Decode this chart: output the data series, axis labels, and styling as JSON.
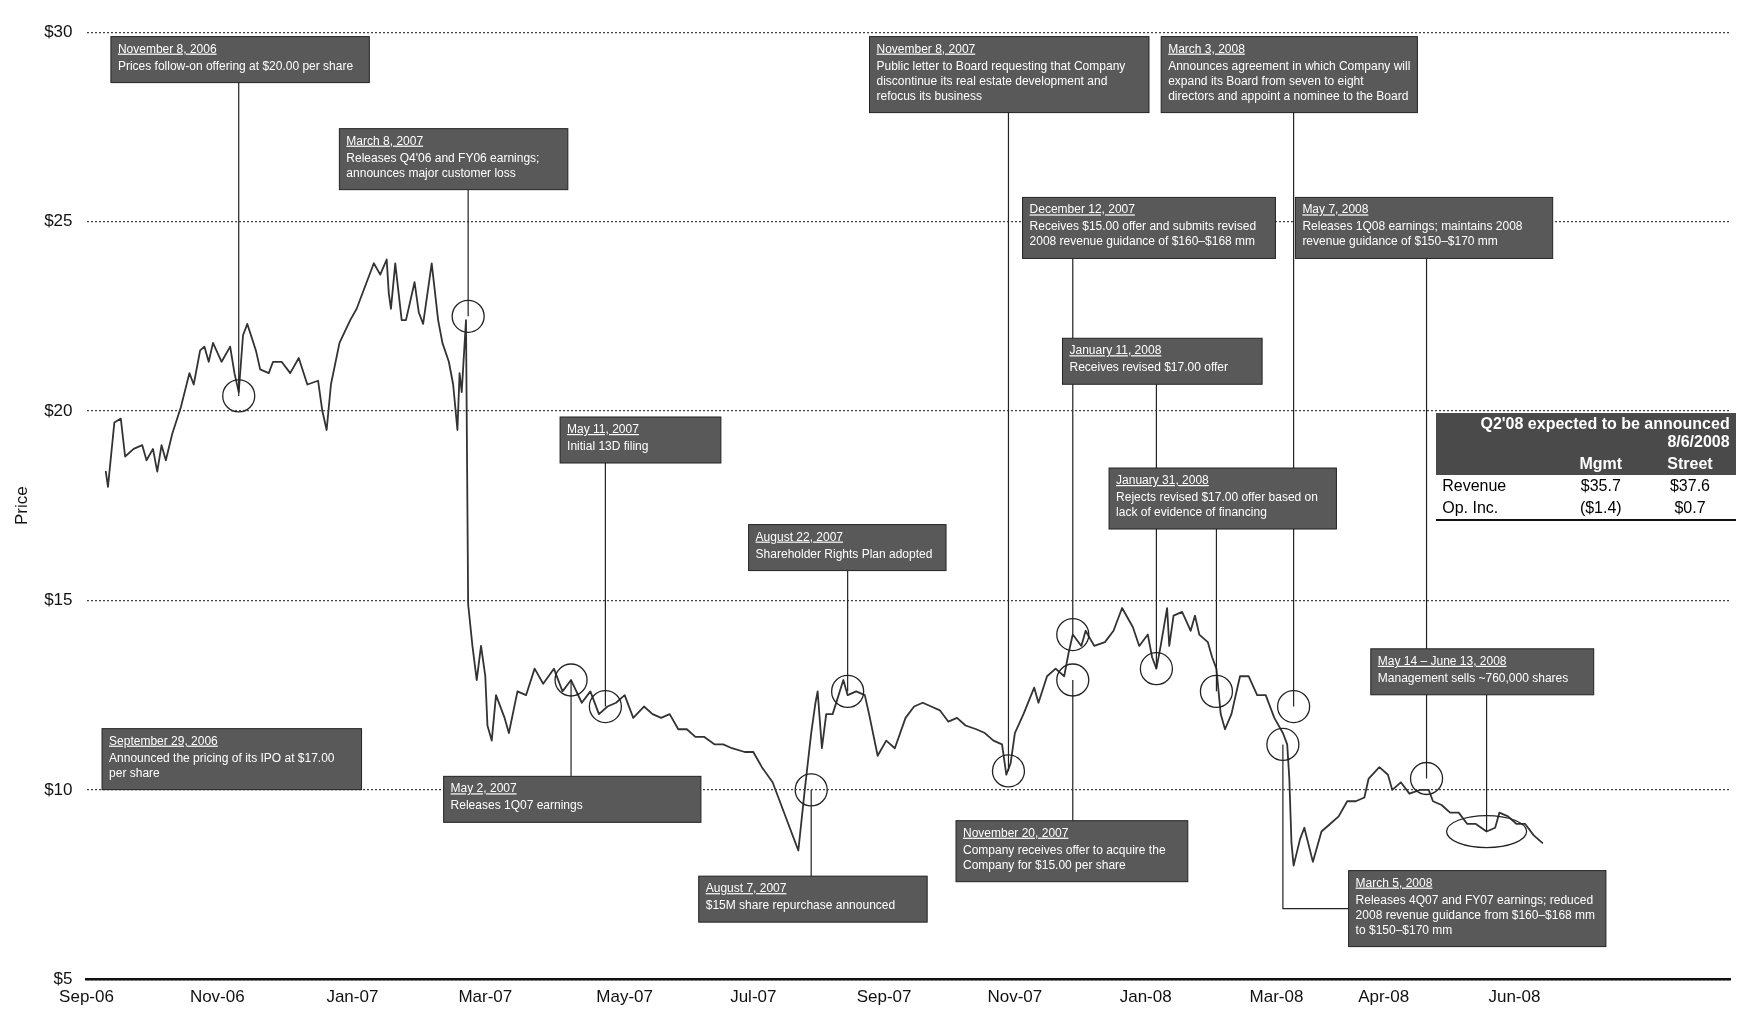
{
  "chart_data": {
    "type": "line",
    "ylabel": "Price",
    "color": "#333333",
    "marker": "none",
    "line_style": "solid",
    "grid": "y",
    "legend": false,
    "xlim": [
      "2006-09-01",
      "2008-10-07"
    ],
    "xticks": [
      {
        "value": "2006-09-01",
        "label": "Sep-06"
      },
      {
        "value": "2006-11-01",
        "label": "Nov-06"
      },
      {
        "value": "2007-01-03",
        "label": "Jan-07"
      },
      {
        "value": "2007-03-06",
        "label": "Mar-07"
      },
      {
        "value": "2007-05-10",
        "label": "May-07"
      },
      {
        "value": "2007-07-09",
        "label": "Jul-07"
      },
      {
        "value": "2007-09-08",
        "label": "Sep-07"
      },
      {
        "value": "2007-11-08",
        "label": "Nov-07"
      },
      {
        "value": "2008-01-08",
        "label": "Jan-08"
      },
      {
        "value": "2008-03-09",
        "label": "Mar-08"
      },
      {
        "value": "2008-04-28",
        "label": "Apr-08"
      },
      {
        "value": "2008-06-28",
        "label": "Jun-08"
      }
    ],
    "ylim": [
      5,
      30
    ],
    "yticks": [
      {
        "value": 5,
        "label": "$5"
      },
      {
        "value": 10,
        "label": "$10"
      },
      {
        "value": 15,
        "label": "$15"
      },
      {
        "value": 20,
        "label": "$20"
      },
      {
        "value": 25,
        "label": "$25"
      },
      {
        "value": 30,
        "label": "$30"
      }
    ],
    "x": [
      "2006-09-10",
      "2006-09-11",
      "2006-09-14",
      "2006-09-17",
      "2006-09-19",
      "2006-09-23",
      "2006-09-27",
      "2006-09-29",
      "2006-10-02",
      "2006-10-04",
      "2006-10-06",
      "2006-10-08",
      "2006-10-11",
      "2006-10-15",
      "2006-10-19",
      "2006-10-21",
      "2006-10-24",
      "2006-10-26",
      "2006-10-28",
      "2006-10-30",
      "2006-11-03",
      "2006-11-07",
      "2006-11-09",
      "2006-11-11",
      "2006-11-13",
      "2006-11-15",
      "2006-11-19",
      "2006-11-21",
      "2006-11-25",
      "2006-11-27",
      "2006-12-01",
      "2006-12-05",
      "2006-12-09",
      "2006-12-13",
      "2006-12-18",
      "2006-12-20",
      "2006-12-22",
      "2006-12-24",
      "2006-12-28",
      "2007-01-02",
      "2007-01-05",
      "2007-01-09",
      "2007-01-13",
      "2007-01-16",
      "2007-01-19",
      "2007-01-20",
      "2007-01-21",
      "2007-01-23",
      "2007-01-26",
      "2007-01-28",
      "2007-02-01",
      "2007-02-03",
      "2007-02-05",
      "2007-02-09",
      "2007-02-12",
      "2007-02-14",
      "2007-02-17",
      "2007-02-19",
      "2007-02-21",
      "2007-02-22",
      "2007-02-23",
      "2007-02-25",
      "2007-02-26",
      "2007-02-28",
      "2007-03-02",
      "2007-03-04",
      "2007-03-06",
      "2007-03-07",
      "2007-03-09",
      "2007-03-11",
      "2007-03-15",
      "2007-03-17",
      "2007-03-21",
      "2007-03-25",
      "2007-03-29",
      "2007-04-02",
      "2007-04-07",
      "2007-04-11",
      "2007-04-15",
      "2007-04-20",
      "2007-04-24",
      "2007-04-28",
      "2007-05-02",
      "2007-05-06",
      "2007-05-10",
      "2007-05-14",
      "2007-05-19",
      "2007-05-23",
      "2007-05-27",
      "2007-05-31",
      "2007-06-04",
      "2007-06-08",
      "2007-06-12",
      "2007-06-16",
      "2007-06-21",
      "2007-06-25",
      "2007-06-29",
      "2007-07-05",
      "2007-07-09",
      "2007-07-13",
      "2007-07-18",
      "2007-07-22",
      "2007-07-26",
      "2007-07-28",
      "2007-07-30",
      "2007-08-02",
      "2007-08-05",
      "2007-08-07",
      "2007-08-08",
      "2007-08-10",
      "2007-08-12",
      "2007-08-15",
      "2007-08-20",
      "2007-08-22",
      "2007-08-26",
      "2007-08-30",
      "2007-09-01",
      "2007-09-05",
      "2007-09-09",
      "2007-09-13",
      "2007-09-18",
      "2007-09-22",
      "2007-09-26",
      "2007-09-30",
      "2007-10-04",
      "2007-10-08",
      "2007-10-12",
      "2007-10-16",
      "2007-10-21",
      "2007-10-25",
      "2007-10-29",
      "2007-11-02",
      "2007-11-04",
      "2007-11-06",
      "2007-11-08",
      "2007-11-12",
      "2007-11-17",
      "2007-11-19",
      "2007-11-23",
      "2007-11-27",
      "2007-12-01",
      "2007-12-03",
      "2007-12-05",
      "2007-12-09",
      "2007-12-11",
      "2007-12-15",
      "2007-12-20",
      "2007-12-24",
      "2007-12-28",
      "2008-01-02",
      "2008-01-05",
      "2008-01-09",
      "2008-01-11",
      "2008-01-13",
      "2008-01-15",
      "2008-01-18",
      "2008-01-19",
      "2008-01-21",
      "2008-01-25",
      "2008-01-29",
      "2008-01-31",
      "2008-02-02",
      "2008-02-06",
      "2008-02-08",
      "2008-02-10",
      "2008-02-12",
      "2008-02-14",
      "2008-02-17",
      "2008-02-21",
      "2008-02-25",
      "2008-02-29",
      "2008-03-04",
      "2008-03-08",
      "2008-03-12",
      "2008-03-14",
      "2008-03-15",
      "2008-03-16",
      "2008-03-17",
      "2008-03-20",
      "2008-03-22",
      "2008-03-26",
      "2008-03-30",
      "2008-04-03",
      "2008-04-07",
      "2008-04-11",
      "2008-04-15",
      "2008-04-19",
      "2008-04-21",
      "2008-04-26",
      "2008-04-30",
      "2008-05-02",
      "2008-05-06",
      "2008-05-10",
      "2008-05-15",
      "2008-05-19",
      "2008-05-21",
      "2008-05-25",
      "2008-05-29",
      "2008-06-02",
      "2008-06-06",
      "2008-06-10",
      "2008-06-15",
      "2008-06-19",
      "2008-06-21",
      "2008-06-25",
      "2008-06-29",
      "2008-07-03",
      "2008-07-07",
      "2008-07-11"
    ],
    "values": [
      18.4,
      18.0,
      19.7,
      19.8,
      18.8,
      19.0,
      19.1,
      18.7,
      19.0,
      18.4,
      19.1,
      18.7,
      19.4,
      20.1,
      21.0,
      20.7,
      21.6,
      21.7,
      21.3,
      21.8,
      21.3,
      21.7,
      21.0,
      20.5,
      22.0,
      22.3,
      21.6,
      21.1,
      21.0,
      21.3,
      21.3,
      21.0,
      21.4,
      20.7,
      20.8,
      20.0,
      19.5,
      20.7,
      21.8,
      22.4,
      22.7,
      23.3,
      23.9,
      23.6,
      24.0,
      23.1,
      22.7,
      23.9,
      22.4,
      22.4,
      23.4,
      22.6,
      22.3,
      23.9,
      22.4,
      21.8,
      21.3,
      20.7,
      19.5,
      21.0,
      20.5,
      22.4,
      14.9,
      13.8,
      12.9,
      13.8,
      13.0,
      11.7,
      11.3,
      12.5,
      11.9,
      11.5,
      12.6,
      12.5,
      13.2,
      12.8,
      13.2,
      12.6,
      12.9,
      12.3,
      12.6,
      12.0,
      12.2,
      12.3,
      12.5,
      11.9,
      12.2,
      12.0,
      11.9,
      12.0,
      11.6,
      11.6,
      11.4,
      11.4,
      11.2,
      11.2,
      11.1,
      11.0,
      11.0,
      10.6,
      10.2,
      9.6,
      9.0,
      8.7,
      8.4,
      10.0,
      11.5,
      12.3,
      12.6,
      11.1,
      12.0,
      12.0,
      12.9,
      12.5,
      12.6,
      12.5,
      12.0,
      10.9,
      11.3,
      11.1,
      11.9,
      12.2,
      12.3,
      12.2,
      12.1,
      11.8,
      11.9,
      11.7,
      11.6,
      11.5,
      11.3,
      11.2,
      10.4,
      10.7,
      11.5,
      12.0,
      12.7,
      12.3,
      13.0,
      13.2,
      13.0,
      13.6,
      14.1,
      13.8,
      14.2,
      13.8,
      13.9,
      14.2,
      14.8,
      14.3,
      13.8,
      14.1,
      13.5,
      13.2,
      13.8,
      14.8,
      13.8,
      14.6,
      14.7,
      14.2,
      14.6,
      14.1,
      13.9,
      13.5,
      13.2,
      12.0,
      11.6,
      12.0,
      13.0,
      13.0,
      12.5,
      12.5,
      11.9,
      11.5,
      11.2,
      10.3,
      8.6,
      8.0,
      8.7,
      9.0,
      8.1,
      8.9,
      9.1,
      9.3,
      9.7,
      9.7,
      9.8,
      10.3,
      10.6,
      10.4,
      10.0,
      10.2,
      9.9,
      10.0,
      10.0,
      9.7,
      9.6,
      9.4,
      9.4,
      9.1,
      9.1,
      8.9,
      9.0,
      9.4,
      9.3,
      9.1,
      9.1,
      8.8,
      8.6
    ],
    "annotations": [
      {
        "text": "November 8, 2006\nPrices follow-on offering at $20.00 per share",
        "x": "2006-11-11",
        "y": 20.4
      },
      {
        "text": "March 8, 2007\nReleases Q4'06 and FY06 earnings; announces major customer loss",
        "x": "2007-02-26",
        "y": 22.5
      },
      {
        "text": "May 11, 2007\nInitial 13D filing",
        "x": "2007-05-01",
        "y": 12.2
      },
      {
        "text": "August 22, 2007\nShareholder Rights Plan adopted",
        "x": "2007-08-22",
        "y": 12.6
      },
      "September 29, 2006\nAnnounced the pricing of its IPO at $17.00 per share",
      {
        "text": "May 2, 2007\nReleases 1Q07 earnings",
        "x": "2007-04-15",
        "y": 12.9
      },
      {
        "text": "August 7, 2007\n$15M share repurchase announced",
        "x": "2007-08-05",
        "y": 10.0
      },
      {
        "text": "November 8, 2007\nPublic letter to Board requesting that Company discontinue its real estate development and refocus its business",
        "x": "2007-11-05",
        "y": 10.5
      },
      {
        "text": "March 3, 2008\nAnnounces agreement in which Company will expand its Board from seven to eight directors and appoint a nominee to the Board",
        "x": "2008-03-17",
        "y": 12.2
      },
      {
        "text": "December 12, 2007\nReceives $15.00 offer and submits revised 2008 revenue guidance of $160–$168 mm",
        "x": "2007-12-05",
        "y": 14.1
      },
      {
        "text": "May 7, 2008\nReleases 1Q08 earnings; maintains 2008 revenue guidance of $150–$170 mm",
        "x": "2008-05-18",
        "y": 10.3
      },
      {
        "text": "January 11, 2008\nReceives revised $17.00 offer",
        "x": "2008-01-13",
        "y": 13.2
      },
      {
        "text": "January 31, 2008\nRejects revised $17.00 offer based on lack of evidence of financing",
        "x": "2008-02-10",
        "y": 12.6
      },
      {
        "text": "November 20, 2007\nCompany receives offer to acquire the Company for $15.00 per share",
        "x": "2007-12-05",
        "y": 12.9
      },
      {
        "text": "March 5, 2008\nReleases 4Q07 and FY07 earnings; reduced 2008 revenue guidance from $160–$168 mm to $150–$170 mm",
        "x": "2008-03-12",
        "y": 11.2
      },
      {
        "text": "May 14 – June 13, 2008\nManagement sells ~760,000 shares",
        "x": "2008-06-15",
        "y": 8.9
      },
      "Q2'08 expected to be announced 8/6/2008",
      "Mgmt",
      "Street",
      "Revenue",
      "$35.7",
      "$37.6",
      "Op. Inc.",
      "($1.4)",
      "$0.7"
    ]
  }
}
